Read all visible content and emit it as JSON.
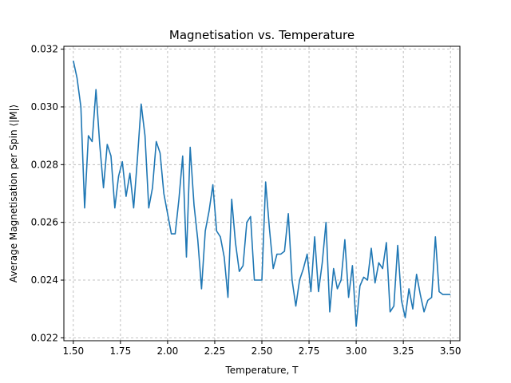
{
  "chart_data": {
    "type": "line",
    "title": "Magnetisation vs. Temperature",
    "xlabel": "Temperature, T",
    "ylabel": "Average Magnetisation per Spin ⟨|M|⟩",
    "xlim": [
      1.45,
      3.55
    ],
    "ylim": [
      0.0219,
      0.0321
    ],
    "xticks": [
      1.5,
      1.75,
      2.0,
      2.25,
      2.5,
      2.75,
      3.0,
      3.25,
      3.5
    ],
    "xtick_labels": [
      "1.50",
      "1.75",
      "2.00",
      "2.25",
      "2.50",
      "2.75",
      "3.00",
      "3.25",
      "3.50"
    ],
    "yticks": [
      0.022,
      0.024,
      0.026,
      0.028,
      0.03,
      0.032
    ],
    "ytick_labels": [
      "0.022",
      "0.024",
      "0.026",
      "0.028",
      "0.030",
      "0.032"
    ],
    "grid": true,
    "line_color": "#1f77b4",
    "series": [
      {
        "x": [
          1.5,
          1.52,
          1.54,
          1.56,
          1.58,
          1.6,
          1.62,
          1.64,
          1.66,
          1.68,
          1.7,
          1.72,
          1.74,
          1.76,
          1.78,
          1.8,
          1.82,
          1.84,
          1.86,
          1.88,
          1.9,
          1.92,
          1.94,
          1.96,
          1.98,
          2.0,
          2.02,
          2.04,
          2.06,
          2.08,
          2.1,
          2.12,
          2.14,
          2.16,
          2.18,
          2.2,
          2.22,
          2.24,
          2.26,
          2.28,
          2.3,
          2.32,
          2.34,
          2.36,
          2.38,
          2.4,
          2.42,
          2.44,
          2.46,
          2.48,
          2.5,
          2.52,
          2.54,
          2.56,
          2.58,
          2.6,
          2.62,
          2.64,
          2.66,
          2.68,
          2.7,
          2.72,
          2.74,
          2.76,
          2.78,
          2.8,
          2.82,
          2.84,
          2.86,
          2.88,
          2.9,
          2.92,
          2.94,
          2.96,
          2.98,
          3.0,
          3.02,
          3.04,
          3.06,
          3.08,
          3.1,
          3.12,
          3.14,
          3.16,
          3.18,
          3.2,
          3.22,
          3.24,
          3.26,
          3.28,
          3.3,
          3.32,
          3.34,
          3.36,
          3.38,
          3.4,
          3.42,
          3.44,
          3.46,
          3.48,
          3.5
        ],
        "y": [
          0.0316,
          0.031,
          0.03,
          0.0265,
          0.029,
          0.0288,
          0.0306,
          0.0287,
          0.0272,
          0.0287,
          0.0283,
          0.0265,
          0.0276,
          0.0281,
          0.0269,
          0.0277,
          0.0265,
          0.0282,
          0.0301,
          0.029,
          0.0265,
          0.0272,
          0.0288,
          0.0284,
          0.027,
          0.0263,
          0.0256,
          0.0256,
          0.0268,
          0.0283,
          0.0248,
          0.0286,
          0.0266,
          0.0254,
          0.0237,
          0.0257,
          0.0264,
          0.0273,
          0.0257,
          0.0255,
          0.0248,
          0.0234,
          0.0268,
          0.0253,
          0.0243,
          0.0245,
          0.026,
          0.0262,
          0.024,
          0.024,
          0.024,
          0.0274,
          0.0258,
          0.0244,
          0.0249,
          0.0249,
          0.025,
          0.0263,
          0.024,
          0.0231,
          0.024,
          0.0244,
          0.0249,
          0.0236,
          0.0255,
          0.0236,
          0.0246,
          0.026,
          0.0229,
          0.0244,
          0.0237,
          0.024,
          0.0254,
          0.0234,
          0.0245,
          0.0224,
          0.0238,
          0.0241,
          0.024,
          0.0251,
          0.0239,
          0.0246,
          0.0244,
          0.0253,
          0.0229,
          0.0231,
          0.0252,
          0.0233,
          0.0227,
          0.0237,
          0.023,
          0.0242,
          0.0235,
          0.0229,
          0.0233,
          0.0234,
          0.0255,
          0.0236,
          0.0235,
          0.0235,
          0.0235
        ]
      }
    ]
  }
}
